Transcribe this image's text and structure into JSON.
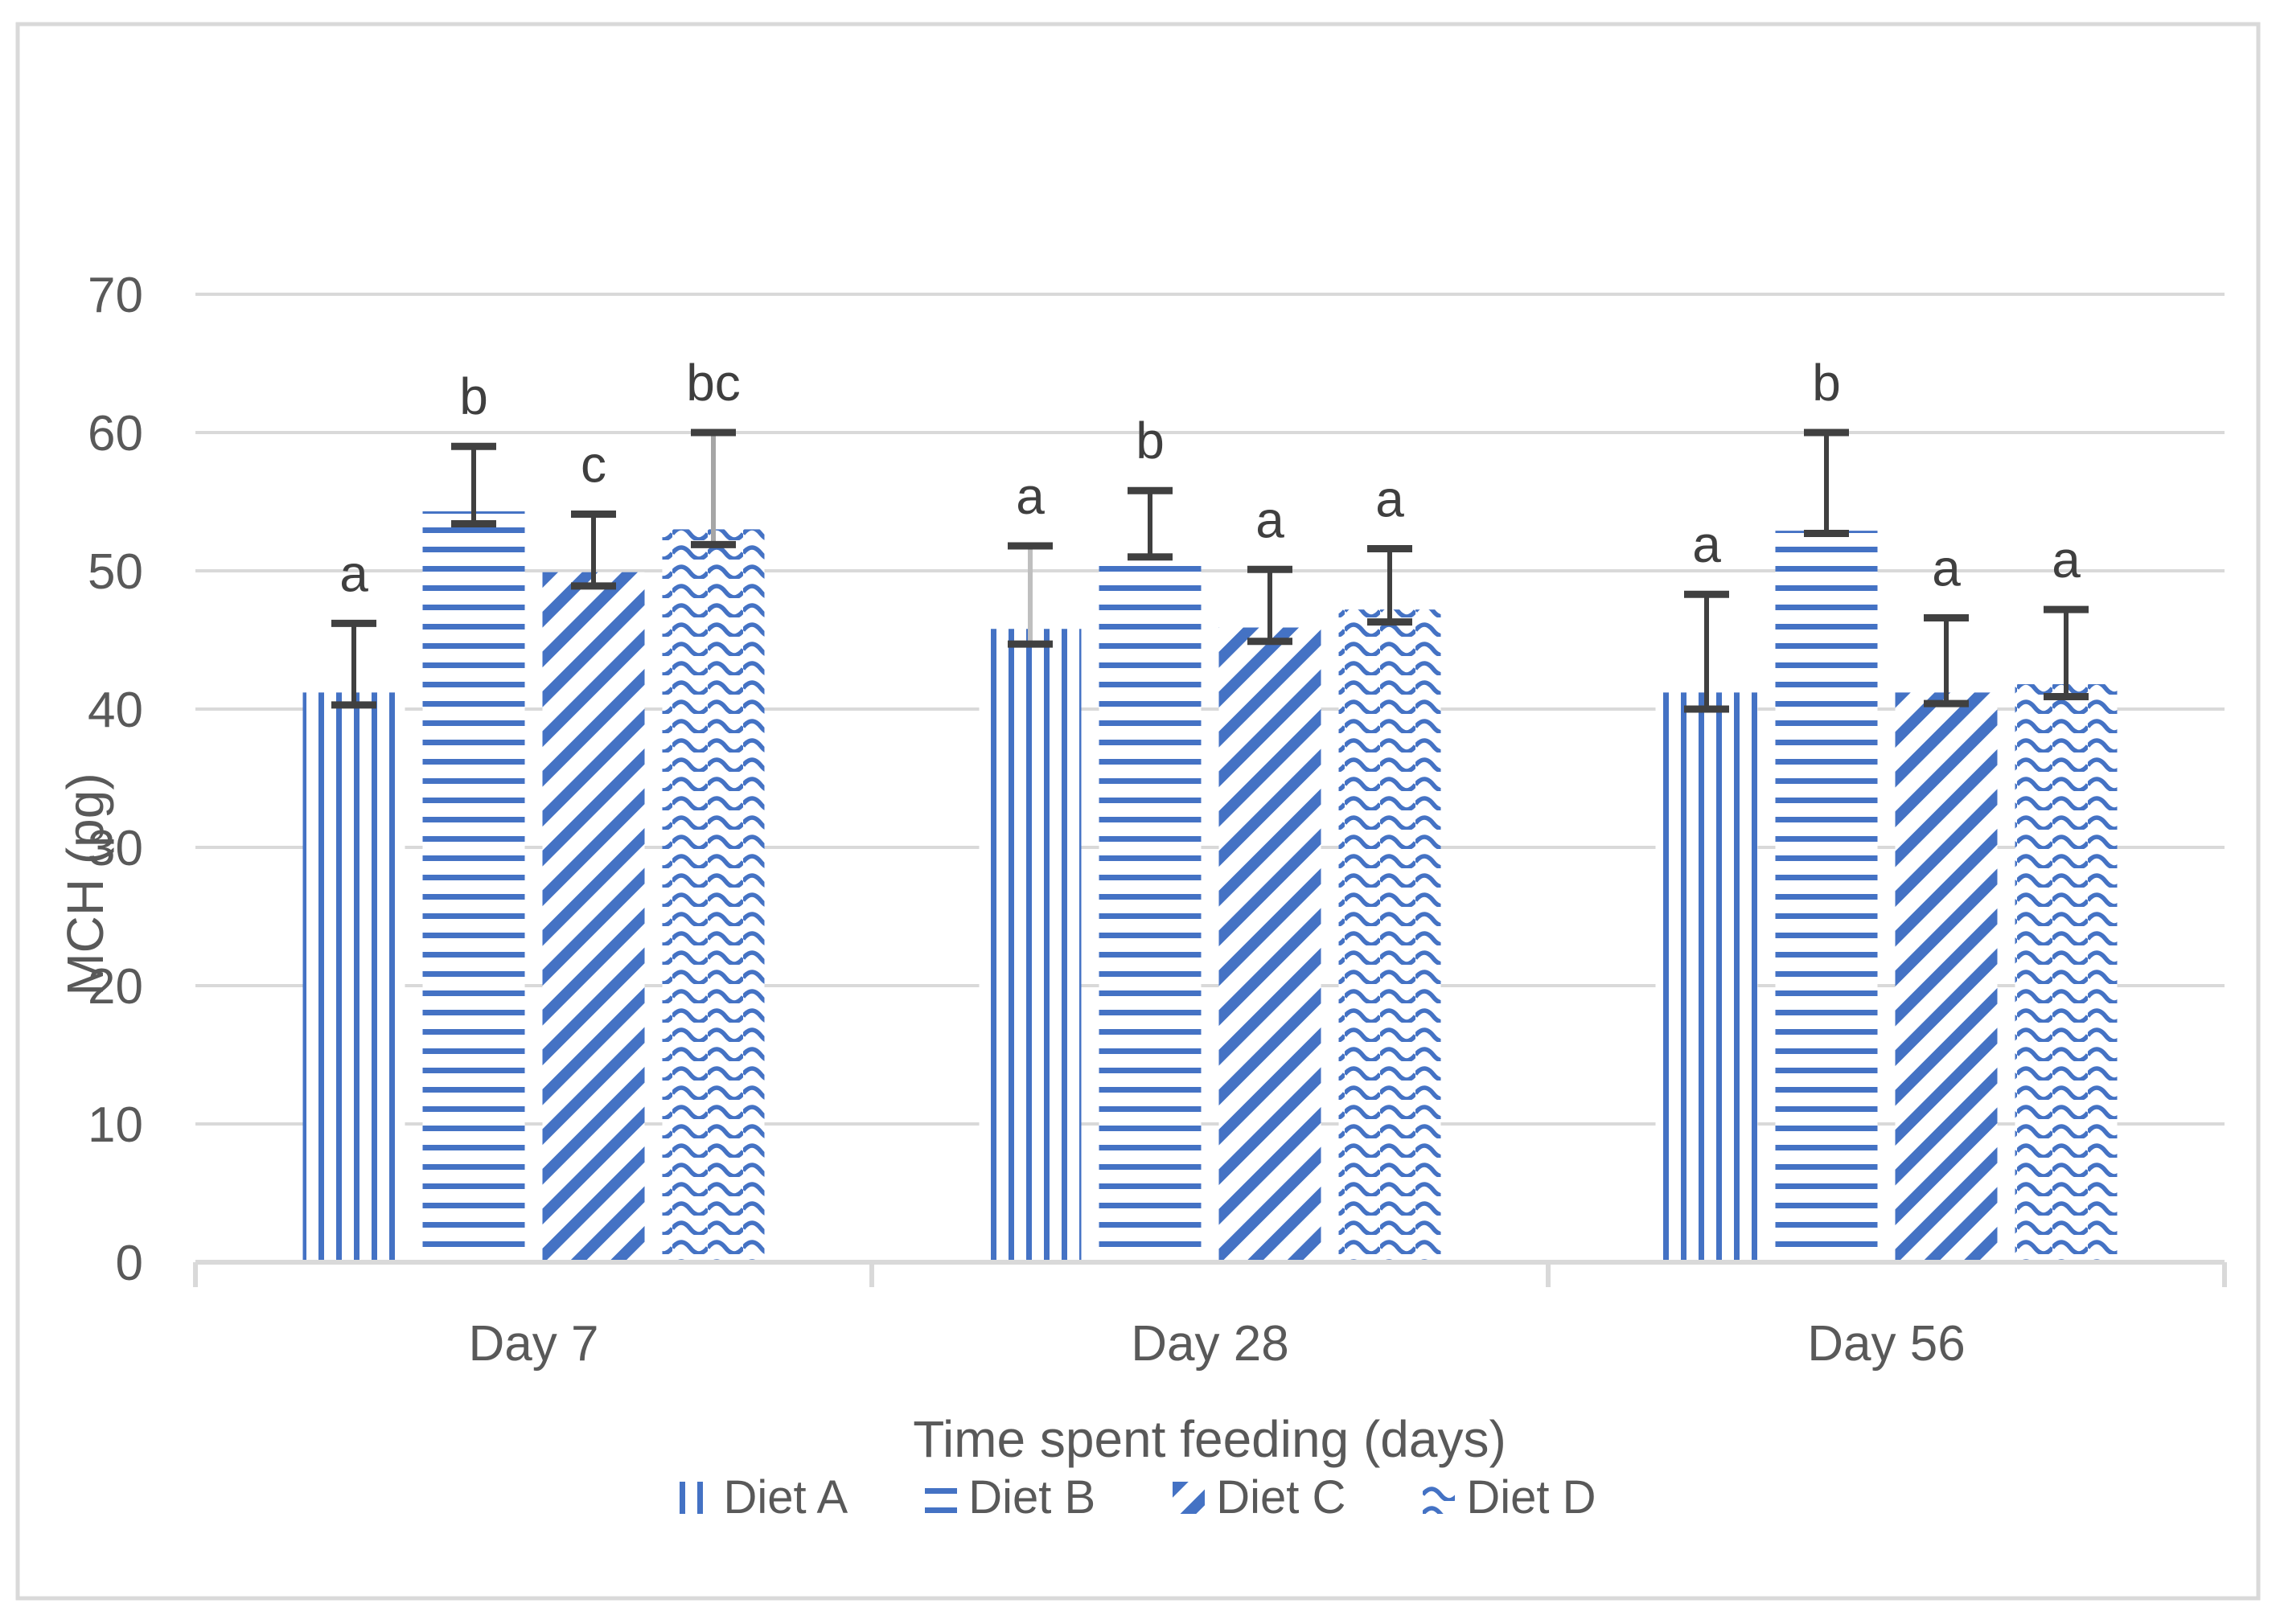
{
  "chart_data": {
    "type": "bar",
    "title": "",
    "xlabel": "Time spent feeding (days)",
    "ylabel": "MCH (pg)",
    "ylim": [
      0,
      70
    ],
    "ytick_step": 10,
    "yticks": [
      0,
      10,
      20,
      30,
      40,
      50,
      60,
      70
    ],
    "grid": true,
    "legend_position": "bottom",
    "categories": [
      "Day 7",
      "Day 28",
      "Day 56"
    ],
    "series": [
      {
        "name": "Diet A",
        "pattern": "vertical-lines",
        "values": [
          41.2,
          45.8,
          41.2
        ],
        "err_low": [
          40.3,
          44.7,
          40.0
        ],
        "err_high": [
          46.2,
          51.8,
          48.3
        ],
        "letters": [
          "a",
          "a",
          "a"
        ],
        "err_line_colors": [
          "#404040",
          "#BFBFBF",
          "#404040"
        ]
      },
      {
        "name": "Diet B",
        "pattern": "horizontal-lines",
        "values": [
          54.3,
          51.3,
          52.9
        ],
        "err_low": [
          53.4,
          51.0,
          52.7
        ],
        "err_high": [
          59.0,
          55.8,
          60.0
        ],
        "letters": [
          "b",
          "b",
          "b"
        ],
        "err_line_colors": [
          "#404040",
          "#404040",
          "#404040"
        ]
      },
      {
        "name": "Diet C",
        "pattern": "diagonal-stripes",
        "values": [
          49.9,
          45.9,
          41.2
        ],
        "err_low": [
          48.9,
          44.9,
          40.4
        ],
        "err_high": [
          54.1,
          50.1,
          46.6
        ],
        "letters": [
          "c",
          "a",
          "a"
        ],
        "err_line_colors": [
          "#404040",
          "#404040",
          "#404040"
        ]
      },
      {
        "name": "Diet D",
        "pattern": "waves",
        "values": [
          53.0,
          47.2,
          41.8
        ],
        "err_low": [
          51.9,
          46.3,
          40.9
        ],
        "err_high": [
          60.0,
          51.6,
          47.2
        ],
        "letters": [
          "bc",
          "a",
          "a"
        ],
        "err_line_colors": [
          "#A6A6A6",
          "#404040",
          "#404040"
        ]
      }
    ],
    "colors": {
      "bar_blue": "#4472C4",
      "gridline": "#D9D9D9",
      "axis_line": "#D9D9D9",
      "axis_text": "#595959",
      "annotation": "#3f3f3f",
      "error_bar_cap": "#404040",
      "frame_border": "#D9D9D9",
      "background": "#FFFFFF"
    }
  }
}
